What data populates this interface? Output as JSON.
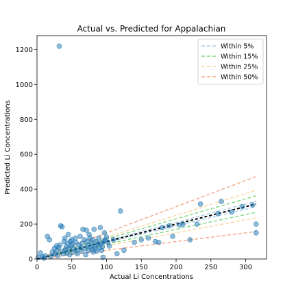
{
  "chart_data": {
    "type": "scatter",
    "title": "Actual vs. Predicted for Appalachian",
    "xlabel": "Actual Li Concentrations",
    "ylabel": "Predicted Li Concentrations",
    "xlim": [
      0,
      330
    ],
    "ylim": [
      0,
      1280
    ],
    "xticks": [
      0,
      50,
      100,
      150,
      200,
      250,
      300
    ],
    "yticks": [
      0,
      200,
      400,
      600,
      800,
      1000,
      1200
    ],
    "grid": false,
    "legend_position": "top-right",
    "identity_line": {
      "x": [
        0,
        315
      ],
      "color": "#000000",
      "style": "dashed"
    },
    "bands": [
      {
        "name": "Within 5%",
        "pct": 0.05,
        "color": "#a6cee3"
      },
      {
        "name": "Within 15%",
        "pct": 0.15,
        "color": "#7fd87f"
      },
      {
        "name": "Within 25%",
        "pct": 0.25,
        "color": "#fdd49e"
      },
      {
        "name": "Within 50%",
        "pct": 0.5,
        "color": "#f4a582"
      }
    ],
    "band_x_range": [
      0,
      315
    ],
    "point_color": "#1f77b4",
    "points": [
      [
        32,
        1220
      ],
      [
        2,
        10
      ],
      [
        5,
        35
      ],
      [
        8,
        12
      ],
      [
        10,
        5
      ],
      [
        12,
        18
      ],
      [
        15,
        130
      ],
      [
        18,
        110
      ],
      [
        20,
        15
      ],
      [
        22,
        40
      ],
      [
        25,
        60
      ],
      [
        26,
        30
      ],
      [
        28,
        75
      ],
      [
        29,
        50
      ],
      [
        30,
        20
      ],
      [
        31,
        65
      ],
      [
        33,
        80
      ],
      [
        34,
        190
      ],
      [
        36,
        185
      ],
      [
        37,
        45
      ],
      [
        38,
        30
      ],
      [
        39,
        100
      ],
      [
        40,
        120
      ],
      [
        41,
        55
      ],
      [
        42,
        70
      ],
      [
        43,
        35
      ],
      [
        44,
        90
      ],
      [
        45,
        140
      ],
      [
        46,
        60
      ],
      [
        47,
        25
      ],
      [
        48,
        100
      ],
      [
        49,
        75
      ],
      [
        50,
        110
      ],
      [
        51,
        85
      ],
      [
        52,
        40
      ],
      [
        53,
        60
      ],
      [
        55,
        120
      ],
      [
        56,
        95
      ],
      [
        57,
        50
      ],
      [
        58,
        30
      ],
      [
        60,
        80
      ],
      [
        62,
        130
      ],
      [
        63,
        65
      ],
      [
        64,
        45
      ],
      [
        65,
        90
      ],
      [
        66,
        170
      ],
      [
        68,
        110
      ],
      [
        69,
        60
      ],
      [
        70,
        25
      ],
      [
        71,
        165
      ],
      [
        72,
        100
      ],
      [
        73,
        80
      ],
      [
        74,
        50
      ],
      [
        75,
        140
      ],
      [
        76,
        120
      ],
      [
        77,
        70
      ],
      [
        78,
        95
      ],
      [
        79,
        55
      ],
      [
        80,
        110
      ],
      [
        81,
        40
      ],
      [
        82,
        170
      ],
      [
        83,
        75
      ],
      [
        84,
        60
      ],
      [
        85,
        100
      ],
      [
        86,
        45
      ],
      [
        88,
        85
      ],
      [
        89,
        120
      ],
      [
        90,
        65
      ],
      [
        91,
        180
      ],
      [
        92,
        90
      ],
      [
        93,
        50
      ],
      [
        94,
        70
      ],
      [
        95,
        10
      ],
      [
        96,
        100
      ],
      [
        97,
        150
      ],
      [
        98,
        110
      ],
      [
        100,
        125
      ],
      [
        102,
        95
      ],
      [
        104,
        75
      ],
      [
        110,
        110
      ],
      [
        115,
        30
      ],
      [
        120,
        275
      ],
      [
        125,
        50
      ],
      [
        140,
        95
      ],
      [
        150,
        110
      ],
      [
        160,
        120
      ],
      [
        170,
        100
      ],
      [
        175,
        95
      ],
      [
        180,
        180
      ],
      [
        190,
        190
      ],
      [
        195,
        130
      ],
      [
        205,
        195
      ],
      [
        210,
        200
      ],
      [
        220,
        110
      ],
      [
        230,
        200
      ],
      [
        235,
        315
      ],
      [
        260,
        260
      ],
      [
        265,
        330
      ],
      [
        280,
        270
      ],
      [
        295,
        300
      ],
      [
        310,
        310
      ],
      [
        315,
        200
      ],
      [
        315,
        150
      ]
    ]
  }
}
